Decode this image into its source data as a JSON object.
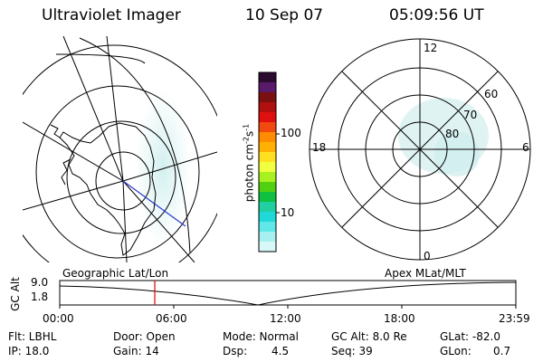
{
  "header": {
    "title": "Ultraviolet Imager",
    "date": "10 Sep 07",
    "time": "05:09:56 UT"
  },
  "colorbar": {
    "label": "photon cm",
    "label_exp1": "-2",
    "label_mid": "s",
    "label_exp2": "-1",
    "tick_100": "100",
    "tick_10": "10",
    "colors": [
      "#2a0a2e",
      "#5a1a6a",
      "#7a1010",
      "#b01010",
      "#e01010",
      "#f04a10",
      "#ff8c00",
      "#ffb000",
      "#ffe020",
      "#f0ff40",
      "#a8f020",
      "#50d010",
      "#10c040",
      "#20d0a0",
      "#20d8d8",
      "#60e8e8",
      "#a8f0f0",
      "#d8f8f8"
    ]
  },
  "polar": {
    "label_12": "12",
    "label_18": "18",
    "label_6": "6",
    "label_0": "0",
    "label_60": "60",
    "label_70": "70",
    "label_80": "80"
  },
  "panels": {
    "left_label": "Geographic Lat/Lon",
    "right_label": "Apex MLat/MLT"
  },
  "timeline": {
    "axis_label": "GC Alt",
    "y_top": "9.0",
    "y_bottom": "1.8",
    "x_ticks": [
      "00:00",
      "06:00",
      "12:00",
      "18:00",
      "23:59"
    ],
    "marker_color": "#e00000"
  },
  "status": {
    "flt": "Flt: LBHL",
    "ip": "IP: 18.0",
    "door": "Door: Open",
    "gain": "Gain: 14",
    "mode": "Mode: Normal",
    "dsp_label": "Dsp:",
    "dsp_value": "4.5",
    "gcalt": "GC Alt: 8.0 Re",
    "seq": "Seq: 39",
    "glat": "GLat: -82.0",
    "glon_label": "GLon:",
    "glon_value": "0.7"
  }
}
